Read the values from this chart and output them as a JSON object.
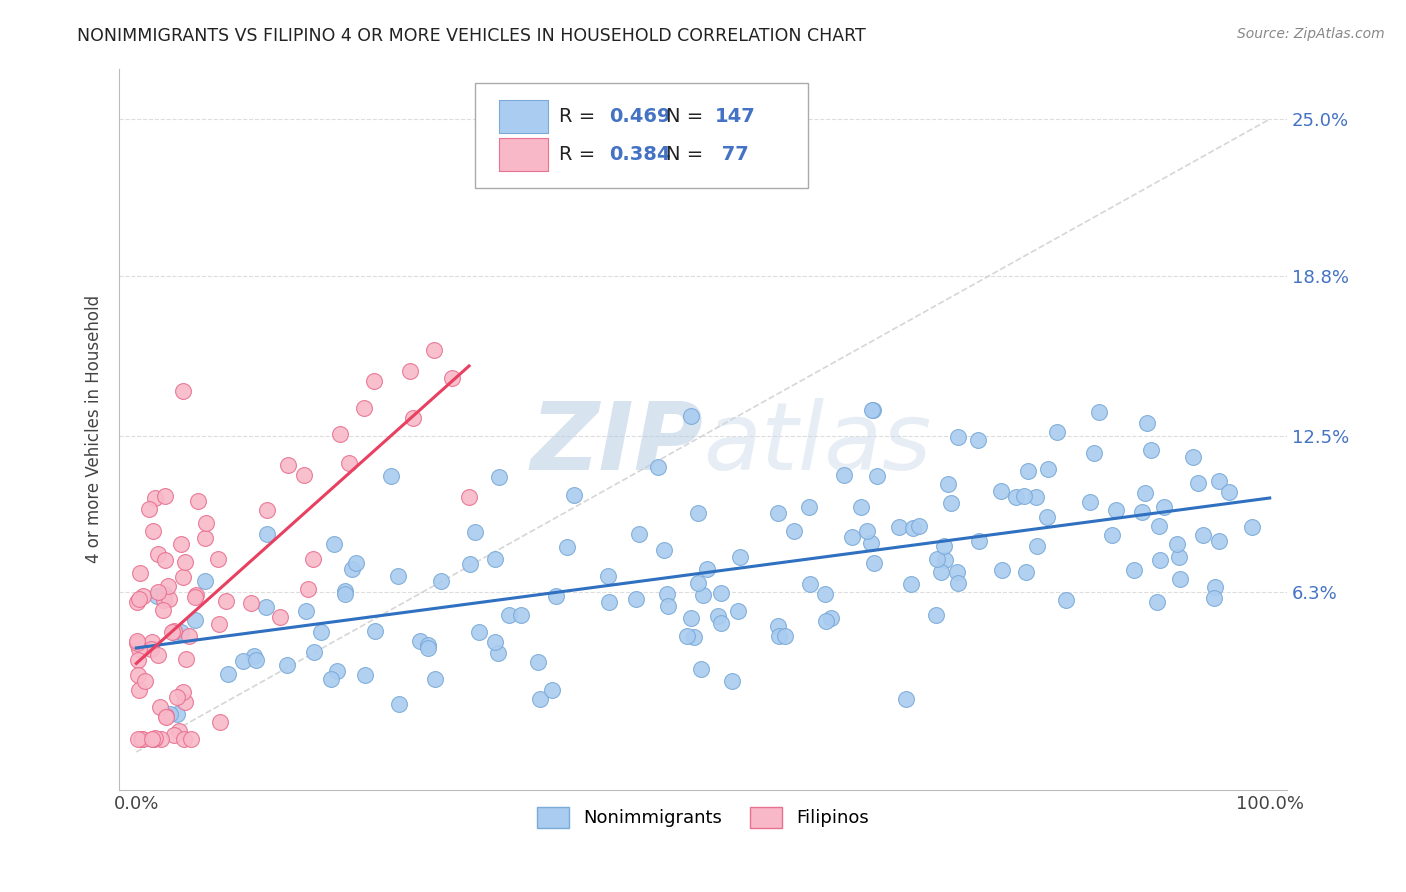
{
  "title": "NONIMMIGRANTS VS FILIPINO 4 OR MORE VEHICLES IN HOUSEHOLD CORRELATION CHART",
  "source": "Source: ZipAtlas.com",
  "ylabel": "4 or more Vehicles in Household",
  "watermark_zip": "ZIP",
  "watermark_atlas": "atlas",
  "xlim": [
    0,
    100
  ],
  "ylim": [
    0,
    25
  ],
  "xticklabels": [
    "0.0%",
    "100.0%"
  ],
  "ytick_values": [
    6.3,
    12.5,
    18.8,
    25.0
  ],
  "ytick_labels": [
    "6.3%",
    "12.5%",
    "18.8%",
    "25.0%"
  ],
  "series1_color": "#aaccf0",
  "series1_edge": "#7aaad8",
  "series2_color": "#f8b8c8",
  "series2_edge": "#e87090",
  "line1_color": "#3070c0",
  "line2_color": "#e84060",
  "diag_color": "#cccccc",
  "R1": 0.469,
  "N1": 147,
  "R2": 0.384,
  "N2": 77,
  "legend_labels": [
    "Nonimmigrants",
    "Filipinos"
  ],
  "label_color": "#4472c4",
  "text_color": "#333333",
  "grid_color": "#dddddd",
  "source_color": "#888888",
  "nonimm_seed": 12345,
  "filip_seed": 54321
}
